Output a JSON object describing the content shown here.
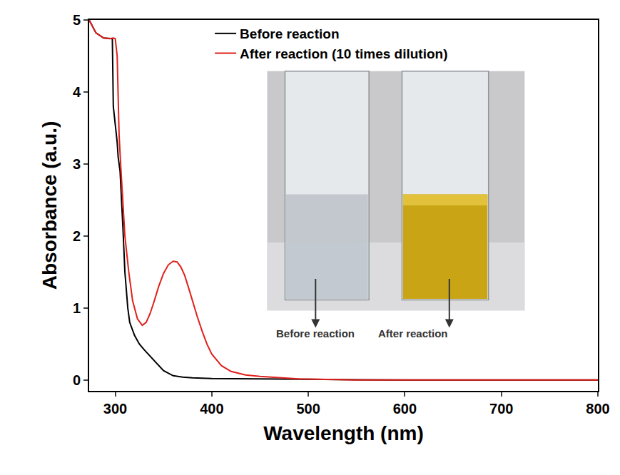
{
  "chart_data": {
    "type": "line",
    "x_label": "Wavelength (nm)",
    "y_label": "Absorbance (a.u.)",
    "xlim": [
      273,
      800
    ],
    "ylim": [
      -0.15,
      5
    ],
    "xticks": [
      300,
      400,
      500,
      600,
      700,
      800
    ],
    "yticks": [
      0,
      1,
      2,
      3,
      4,
      5
    ],
    "grid": false,
    "legend": "top",
    "series": [
      {
        "name": "Before reaction",
        "color": "#000000",
        "x": [
          273,
          280,
          288,
          294,
          297,
          298,
          300,
          302,
          303,
          305,
          308,
          310,
          313,
          315,
          320,
          325,
          330,
          340,
          350,
          360,
          370,
          380,
          400,
          450,
          500,
          600,
          700,
          800
        ],
        "values": [
          5.0,
          4.82,
          4.75,
          4.74,
          4.74,
          3.8,
          3.55,
          3.3,
          3.1,
          2.9,
          2.1,
          1.5,
          1.0,
          0.8,
          0.62,
          0.5,
          0.42,
          0.27,
          0.13,
          0.06,
          0.04,
          0.03,
          0.02,
          0.015,
          0.01,
          0.0,
          0.0,
          0.0
        ]
      },
      {
        "name": "After reaction (10 times dilution)",
        "color": "#e0201b",
        "x": [
          273,
          280,
          288,
          294,
          298,
          300,
          302,
          304,
          306,
          308,
          310,
          314,
          318,
          323,
          328,
          332,
          336,
          340,
          345,
          350,
          355,
          360,
          364,
          368,
          372,
          376,
          380,
          385,
          390,
          395,
          400,
          410,
          420,
          435,
          450,
          470,
          490,
          510,
          550,
          600,
          700,
          800
        ],
        "values": [
          5.0,
          4.82,
          4.75,
          4.74,
          4.75,
          4.74,
          4.5,
          3.4,
          2.9,
          2.4,
          2.0,
          1.5,
          1.1,
          0.85,
          0.76,
          0.8,
          0.92,
          1.08,
          1.3,
          1.48,
          1.6,
          1.65,
          1.64,
          1.57,
          1.45,
          1.28,
          1.1,
          0.88,
          0.68,
          0.5,
          0.36,
          0.2,
          0.12,
          0.07,
          0.05,
          0.03,
          0.015,
          0.01,
          0.0,
          0.0,
          0.0,
          0.0
        ]
      }
    ],
    "annotations": [
      "Before reaction",
      "After reaction"
    ]
  }
}
